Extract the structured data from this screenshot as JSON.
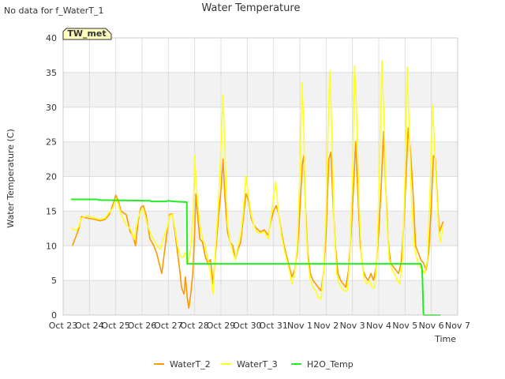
{
  "page": {
    "note": "No data for f_WaterT_1",
    "badge": "TW_met"
  },
  "chart_data": {
    "type": "line",
    "title": "Water Temperature",
    "xlabel": "Time",
    "ylabel": "Water Temperature (C)",
    "xlim": [
      0,
      15
    ],
    "ylim": [
      0,
      40
    ],
    "x_ticks": [
      {
        "v": 0,
        "label": "Oct 23"
      },
      {
        "v": 1,
        "label": "Oct 24"
      },
      {
        "v": 2,
        "label": "Oct 25"
      },
      {
        "v": 3,
        "label": "Oct 26"
      },
      {
        "v": 4,
        "label": "Oct 27"
      },
      {
        "v": 5,
        "label": "Oct 28"
      },
      {
        "v": 6,
        "label": "Oct 29"
      },
      {
        "v": 7,
        "label": "Oct 30"
      },
      {
        "v": 8,
        "label": "Oct 31"
      },
      {
        "v": 9,
        "label": "Nov 1"
      },
      {
        "v": 10,
        "label": "Nov 2"
      },
      {
        "v": 11,
        "label": "Nov 3"
      },
      {
        "v": 12,
        "label": "Nov 4"
      },
      {
        "v": 13,
        "label": "Nov 5"
      },
      {
        "v": 14,
        "label": "Nov 6"
      },
      {
        "v": 15,
        "label": "Nov 7"
      }
    ],
    "y_ticks": [
      0,
      5,
      10,
      15,
      20,
      25,
      30,
      35,
      40
    ],
    "grid": true,
    "legend_position": "bottom-center",
    "series": [
      {
        "name": "WaterT_2",
        "color": "#FF9900",
        "points": [
          [
            0.35,
            10.0
          ],
          [
            0.5,
            11.5
          ],
          [
            0.6,
            12.5
          ],
          [
            0.7,
            14.2
          ],
          [
            0.9,
            14.0
          ],
          [
            1.2,
            13.8
          ],
          [
            1.4,
            13.6
          ],
          [
            1.6,
            13.8
          ],
          [
            1.75,
            14.5
          ],
          [
            1.9,
            16.0
          ],
          [
            2.0,
            17.3
          ],
          [
            2.1,
            16.5
          ],
          [
            2.2,
            15.0
          ],
          [
            2.4,
            14.5
          ],
          [
            2.55,
            12.0
          ],
          [
            2.65,
            11.5
          ],
          [
            2.75,
            10.0
          ],
          [
            2.85,
            13.5
          ],
          [
            2.95,
            15.5
          ],
          [
            3.05,
            15.8
          ],
          [
            3.15,
            14.5
          ],
          [
            3.3,
            11.0
          ],
          [
            3.45,
            10.0
          ],
          [
            3.55,
            9.0
          ],
          [
            3.65,
            7.5
          ],
          [
            3.75,
            6.0
          ],
          [
            3.85,
            9.0
          ],
          [
            3.95,
            12.0
          ],
          [
            4.05,
            14.5
          ],
          [
            4.15,
            14.6
          ],
          [
            4.25,
            12.0
          ],
          [
            4.35,
            9.0
          ],
          [
            4.45,
            6.0
          ],
          [
            4.5,
            4.0
          ],
          [
            4.6,
            3.0
          ],
          [
            4.65,
            5.5
          ],
          [
            4.72,
            2.5
          ],
          [
            4.78,
            1.0
          ],
          [
            4.85,
            3.0
          ],
          [
            4.93,
            6.0
          ],
          [
            5.0,
            12.0
          ],
          [
            5.05,
            17.5
          ],
          [
            5.12,
            14.0
          ],
          [
            5.2,
            11.0
          ],
          [
            5.3,
            10.5
          ],
          [
            5.4,
            8.5
          ],
          [
            5.5,
            7.5
          ],
          [
            5.6,
            8.0
          ],
          [
            5.7,
            4.5
          ],
          [
            5.8,
            9.0
          ],
          [
            5.9,
            14.0
          ],
          [
            6.0,
            18.0
          ],
          [
            6.08,
            22.5
          ],
          [
            6.15,
            17.0
          ],
          [
            6.25,
            12.0
          ],
          [
            6.35,
            10.5
          ],
          [
            6.45,
            10.0
          ],
          [
            6.55,
            8.0
          ],
          [
            6.65,
            9.5
          ],
          [
            6.75,
            10.5
          ],
          [
            6.85,
            14.0
          ],
          [
            6.95,
            17.5
          ],
          [
            7.05,
            16.5
          ],
          [
            7.15,
            14.0
          ],
          [
            7.25,
            13.0
          ],
          [
            7.35,
            12.5
          ],
          [
            7.5,
            12.0
          ],
          [
            7.65,
            12.3
          ],
          [
            7.8,
            11.5
          ],
          [
            7.9,
            13.5
          ],
          [
            8.0,
            15.0
          ],
          [
            8.1,
            15.8
          ],
          [
            8.2,
            14.5
          ],
          [
            8.3,
            12.0
          ],
          [
            8.4,
            10.0
          ],
          [
            8.5,
            8.5
          ],
          [
            8.6,
            7.0
          ],
          [
            8.7,
            5.5
          ],
          [
            8.8,
            6.5
          ],
          [
            8.9,
            9.0
          ],
          [
            9.0,
            15.0
          ],
          [
            9.1,
            22.0
          ],
          [
            9.15,
            23.0
          ],
          [
            9.22,
            15.0
          ],
          [
            9.3,
            9.0
          ],
          [
            9.4,
            6.0
          ],
          [
            9.5,
            5.0
          ],
          [
            9.6,
            4.5
          ],
          [
            9.7,
            4.0
          ],
          [
            9.8,
            3.5
          ],
          [
            9.9,
            6.0
          ],
          [
            10.0,
            12.0
          ],
          [
            10.1,
            22.5
          ],
          [
            10.18,
            23.5
          ],
          [
            10.25,
            17.0
          ],
          [
            10.35,
            10.0
          ],
          [
            10.45,
            6.0
          ],
          [
            10.55,
            5.0
          ],
          [
            10.65,
            4.5
          ],
          [
            10.75,
            4.0
          ],
          [
            10.85,
            6.5
          ],
          [
            10.95,
            12.0
          ],
          [
            11.05,
            19.0
          ],
          [
            11.12,
            25.0
          ],
          [
            11.2,
            18.0
          ],
          [
            11.3,
            10.0
          ],
          [
            11.4,
            6.5
          ],
          [
            11.5,
            5.5
          ],
          [
            11.6,
            5.0
          ],
          [
            11.7,
            6.0
          ],
          [
            11.8,
            5.0
          ],
          [
            11.9,
            7.0
          ],
          [
            12.0,
            12.0
          ],
          [
            12.1,
            19.0
          ],
          [
            12.18,
            26.5
          ],
          [
            12.25,
            20.0
          ],
          [
            12.35,
            11.0
          ],
          [
            12.45,
            7.5
          ],
          [
            12.55,
            7.0
          ],
          [
            12.65,
            6.5
          ],
          [
            12.75,
            6.0
          ],
          [
            12.85,
            7.5
          ],
          [
            12.95,
            13.0
          ],
          [
            13.05,
            21.0
          ],
          [
            13.12,
            27.0
          ],
          [
            13.2,
            24.0
          ],
          [
            13.3,
            18.0
          ],
          [
            13.4,
            10.0
          ],
          [
            13.5,
            9.0
          ],
          [
            13.6,
            8.0
          ],
          [
            13.7,
            7.5
          ],
          [
            13.8,
            6.5
          ],
          [
            13.9,
            9.0
          ],
          [
            14.0,
            16.0
          ],
          [
            14.08,
            23.0
          ],
          [
            14.15,
            22.5
          ],
          [
            14.25,
            15.0
          ],
          [
            14.3,
            12.0
          ],
          [
            14.35,
            12.5
          ],
          [
            14.45,
            13.5
          ]
        ]
      },
      {
        "name": "WaterT_3",
        "color": "#FFFF22",
        "points": [
          [
            0.3,
            12.5
          ],
          [
            0.5,
            12.2
          ],
          [
            0.6,
            12.8
          ],
          [
            0.7,
            14.0
          ],
          [
            0.9,
            14.3
          ],
          [
            1.2,
            14.0
          ],
          [
            1.4,
            13.8
          ],
          [
            1.6,
            14.0
          ],
          [
            1.75,
            14.8
          ],
          [
            1.9,
            15.5
          ],
          [
            2.0,
            16.8
          ],
          [
            2.1,
            16.0
          ],
          [
            2.2,
            14.5
          ],
          [
            2.4,
            13.0
          ],
          [
            2.55,
            12.5
          ],
          [
            2.7,
            11.0
          ],
          [
            2.85,
            14.0
          ],
          [
            2.95,
            15.0
          ],
          [
            3.05,
            15.3
          ],
          [
            3.2,
            13.0
          ],
          [
            3.35,
            11.5
          ],
          [
            3.5,
            10.5
          ],
          [
            3.6,
            9.8
          ],
          [
            3.7,
            9.5
          ],
          [
            3.8,
            11.0
          ],
          [
            3.95,
            12.5
          ],
          [
            4.05,
            14.3
          ],
          [
            4.15,
            14.5
          ],
          [
            4.25,
            12.5
          ],
          [
            4.35,
            10.0
          ],
          [
            4.45,
            8.5
          ],
          [
            4.55,
            8.3
          ],
          [
            4.65,
            9.0
          ],
          [
            4.75,
            7.5
          ],
          [
            4.85,
            9.5
          ],
          [
            4.95,
            15.0
          ],
          [
            5.0,
            23.0
          ],
          [
            5.05,
            19.5
          ],
          [
            5.12,
            16.0
          ],
          [
            5.2,
            13.0
          ],
          [
            5.3,
            11.0
          ],
          [
            5.4,
            10.0
          ],
          [
            5.5,
            8.0
          ],
          [
            5.6,
            6.0
          ],
          [
            5.7,
            3.0
          ],
          [
            5.8,
            10.0
          ],
          [
            5.9,
            16.0
          ],
          [
            6.0,
            24.0
          ],
          [
            6.08,
            31.7
          ],
          [
            6.15,
            24.0
          ],
          [
            6.25,
            13.0
          ],
          [
            6.35,
            10.5
          ],
          [
            6.45,
            9.0
          ],
          [
            6.55,
            8.0
          ],
          [
            6.65,
            10.0
          ],
          [
            6.75,
            11.5
          ],
          [
            6.85,
            15.0
          ],
          [
            6.95,
            20.2
          ],
          [
            7.05,
            17.0
          ],
          [
            7.15,
            14.5
          ],
          [
            7.25,
            13.0
          ],
          [
            7.35,
            12.0
          ],
          [
            7.5,
            11.8
          ],
          [
            7.65,
            12.0
          ],
          [
            7.8,
            11.0
          ],
          [
            7.9,
            14.0
          ],
          [
            8.0,
            17.0
          ],
          [
            8.08,
            19.2
          ],
          [
            8.18,
            15.0
          ],
          [
            8.3,
            11.5
          ],
          [
            8.4,
            9.5
          ],
          [
            8.5,
            8.0
          ],
          [
            8.6,
            6.5
          ],
          [
            8.7,
            4.5
          ],
          [
            8.8,
            6.0
          ],
          [
            8.9,
            10.0
          ],
          [
            9.0,
            20.0
          ],
          [
            9.08,
            33.5
          ],
          [
            9.15,
            27.0
          ],
          [
            9.22,
            14.0
          ],
          [
            9.3,
            8.0
          ],
          [
            9.4,
            5.0
          ],
          [
            9.5,
            4.0
          ],
          [
            9.6,
            3.5
          ],
          [
            9.7,
            2.5
          ],
          [
            9.8,
            2.3
          ],
          [
            9.9,
            6.0
          ],
          [
            10.0,
            15.0
          ],
          [
            10.08,
            28.0
          ],
          [
            10.14,
            35.3
          ],
          [
            10.22,
            26.0
          ],
          [
            10.3,
            13.0
          ],
          [
            10.4,
            6.0
          ],
          [
            10.5,
            4.5
          ],
          [
            10.6,
            3.8
          ],
          [
            10.7,
            3.5
          ],
          [
            10.8,
            3.5
          ],
          [
            10.9,
            8.0
          ],
          [
            11.0,
            20.0
          ],
          [
            11.08,
            36.0
          ],
          [
            11.15,
            30.0
          ],
          [
            11.25,
            16.0
          ],
          [
            11.35,
            8.0
          ],
          [
            11.45,
            5.0
          ],
          [
            11.55,
            4.5
          ],
          [
            11.65,
            5.0
          ],
          [
            11.75,
            4.0
          ],
          [
            11.85,
            4.0
          ],
          [
            11.95,
            10.0
          ],
          [
            12.05,
            25.0
          ],
          [
            12.12,
            36.7
          ],
          [
            12.2,
            28.0
          ],
          [
            12.3,
            14.0
          ],
          [
            12.4,
            8.0
          ],
          [
            12.5,
            6.5
          ],
          [
            12.6,
            6.0
          ],
          [
            12.7,
            5.0
          ],
          [
            12.8,
            4.5
          ],
          [
            12.9,
            8.0
          ],
          [
            13.0,
            20.0
          ],
          [
            13.08,
            35.8
          ],
          [
            13.15,
            28.0
          ],
          [
            13.25,
            16.0
          ],
          [
            13.35,
            10.0
          ],
          [
            13.45,
            8.0
          ],
          [
            13.55,
            7.0
          ],
          [
            13.65,
            6.5
          ],
          [
            13.75,
            6.0
          ],
          [
            13.85,
            8.0
          ],
          [
            13.95,
            18.0
          ],
          [
            14.05,
            30.3
          ],
          [
            14.12,
            24.0
          ],
          [
            14.2,
            18.0
          ],
          [
            14.28,
            12.0
          ],
          [
            14.35,
            10.5
          ],
          [
            14.45,
            13.0
          ]
        ]
      },
      {
        "name": "H2O_Temp",
        "color": "#22EE22",
        "points": [
          [
            0.3,
            16.7
          ],
          [
            1.3,
            16.7
          ],
          [
            1.35,
            16.6
          ],
          [
            3.3,
            16.5
          ],
          [
            3.35,
            16.4
          ],
          [
            3.9,
            16.4
          ],
          [
            4.0,
            16.5
          ],
          [
            4.2,
            16.4
          ],
          [
            4.7,
            16.3
          ],
          [
            4.72,
            7.4
          ],
          [
            13.6,
            7.4
          ],
          [
            13.65,
            6.5
          ],
          [
            13.7,
            0.0
          ],
          [
            14.35,
            0.0
          ]
        ]
      }
    ]
  }
}
